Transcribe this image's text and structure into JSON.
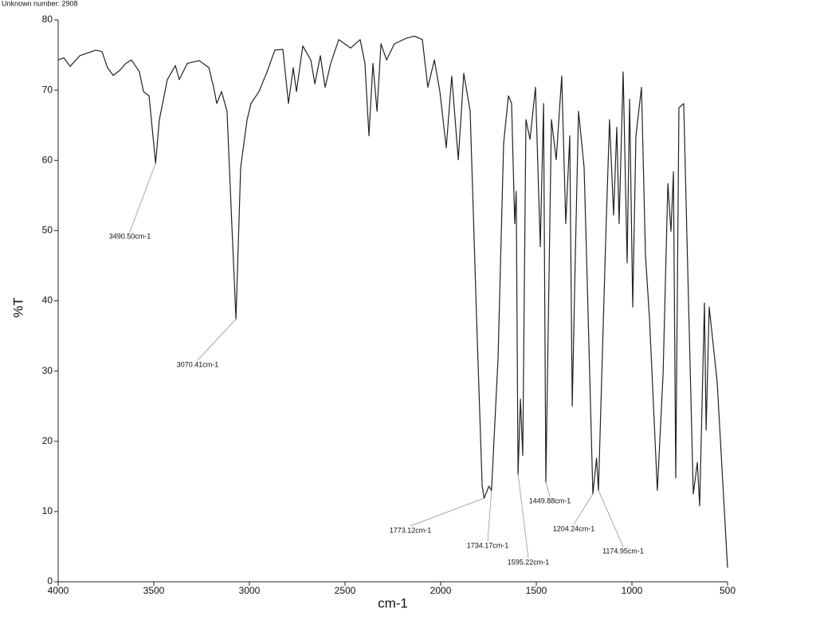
{
  "chart_data": {
    "type": "line",
    "title": "Unknown number: 2908",
    "x_label": "cm-1",
    "y_label": "%T",
    "color": "#222222",
    "xlim": [
      4000,
      500
    ],
    "ylim": [
      0,
      80
    ],
    "xticks": [
      4000,
      3500,
      3000,
      2500,
      2000,
      1500,
      1000,
      500
    ],
    "yticks": [
      0,
      10,
      20,
      30,
      40,
      50,
      60,
      70,
      80
    ],
    "x": [
      4000,
      3971,
      3937,
      3887,
      3804,
      3771,
      3742,
      3712,
      3679,
      3646,
      3617,
      3575,
      3554,
      3525,
      3490.5,
      3471,
      3429,
      3387,
      3367,
      3325,
      3262,
      3212,
      3187,
      3171,
      3146,
      3117,
      3096,
      3070.41,
      3046,
      3012,
      2992,
      2950,
      2908,
      2867,
      2825,
      2796,
      2771,
      2754,
      2721,
      2679,
      2658,
      2629,
      2604,
      2575,
      2533,
      2471,
      2421,
      2396,
      2375,
      2354,
      2333,
      2312,
      2283,
      2242,
      2179,
      2137,
      2096,
      2067,
      2033,
      2004,
      1971,
      1942,
      1908,
      1879,
      1846,
      1812,
      1783,
      1773.12,
      1748,
      1734.17,
      1700,
      1671,
      1646,
      1629,
      1613,
      1605,
      1595.22,
      1583,
      1571,
      1554,
      1533,
      1504,
      1479,
      1462,
      1449.88,
      1421,
      1396,
      1367,
      1346,
      1325,
      1312,
      1296,
      1279,
      1250,
      1233,
      1204.24,
      1185,
      1174.95,
      1137,
      1117,
      1096,
      1079,
      1067,
      1046,
      1025,
      1012,
      996,
      979,
      950,
      929,
      908,
      867,
      837,
      812,
      796,
      783,
      771,
      754,
      729,
      712,
      679,
      658,
      646,
      621,
      612,
      596,
      554,
      500
    ],
    "values": [
      74.3,
      74.6,
      73.4,
      74.9,
      75.7,
      75.5,
      73.2,
      72.1,
      72.8,
      73.8,
      74.3,
      72.6,
      69.8,
      69.2,
      59.6,
      65.8,
      71.5,
      73.5,
      71.5,
      73.8,
      74.2,
      73.2,
      70.4,
      68.1,
      69.8,
      67,
      53.3,
      37.4,
      59,
      65.8,
      68.1,
      69.8,
      72.6,
      75.7,
      75.8,
      68.1,
      73.2,
      69.8,
      76.3,
      74.3,
      70.9,
      74.9,
      70.4,
      73.8,
      77.2,
      76,
      77.2,
      73.8,
      63.5,
      73.8,
      67,
      76.6,
      74.3,
      76.6,
      77.4,
      77.7,
      77.2,
      70.4,
      74.3,
      69.8,
      61.8,
      72,
      60.1,
      72.4,
      67,
      37.4,
      13.6,
      11.9,
      13.6,
      13,
      31.8,
      62.4,
      69.2,
      68.1,
      51,
      55.6,
      15.3,
      26,
      18,
      65.8,
      63,
      70.4,
      47.7,
      68.1,
      14.2,
      65.8,
      60.1,
      72,
      51,
      63.5,
      25,
      46.5,
      67,
      59,
      42,
      12.5,
      17.6,
      13,
      48.8,
      65.8,
      52.2,
      64.7,
      51,
      72.6,
      45.4,
      68.7,
      39.1,
      63.5,
      70.4,
      46.5,
      37.4,
      13,
      29.5,
      56.7,
      49.9,
      58.4,
      14.8,
      67.5,
      68.1,
      48.8,
      12.5,
      17,
      10.8,
      39.7,
      21.6,
      39.1,
      28.4,
      2
    ],
    "annotations": [
      {
        "label": "3490.50cm-1",
        "x": 3490.5,
        "y": 59.6
      },
      {
        "label": "3070.41cm-1",
        "x": 3070.41,
        "y": 37.4
      },
      {
        "label": "1773.12cm-1",
        "x": 1773.12,
        "y": 11.9
      },
      {
        "label": "1734.17cm-1",
        "x": 1734.17,
        "y": 13
      },
      {
        "label": "1595.22cm-1",
        "x": 1595.22,
        "y": 15.3
      },
      {
        "label": "1449.88cm-1",
        "x": 1449.88,
        "y": 14.2
      },
      {
        "label": "1204.24cm-1",
        "x": 1204.24,
        "y": 12.5
      },
      {
        "label": "1174.95cm-1",
        "x": 1174.95,
        "y": 13
      }
    ]
  }
}
